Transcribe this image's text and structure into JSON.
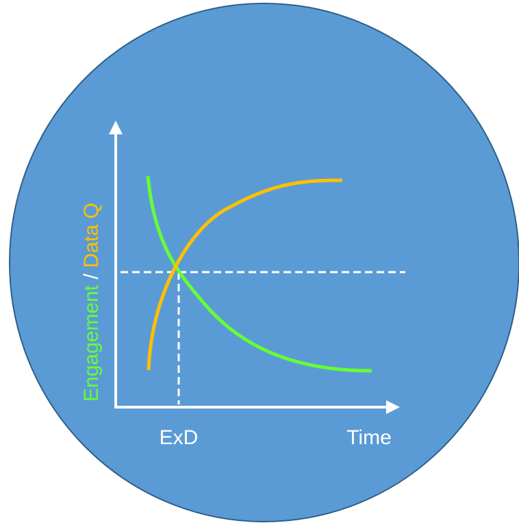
{
  "labels": {
    "y_axis_part1": "Engagement",
    "y_axis_separator": " / ",
    "y_axis_part2": "Data Q",
    "x_marker": "ExD",
    "x_axis": "Time"
  },
  "colors": {
    "circle_fill": "#5B9BD5",
    "circle_stroke": "#2E5F8A",
    "axis": "#FFFFFF",
    "engagement_curve": "#66FF33",
    "data_quality_curve": "#FFC000",
    "dashed_guides": "#FFFFFF",
    "text_white": "#FFFFFF"
  },
  "curves": [
    {
      "name": "engagement",
      "trend": "decreasing"
    },
    {
      "name": "data-quality",
      "trend": "increasing"
    }
  ]
}
